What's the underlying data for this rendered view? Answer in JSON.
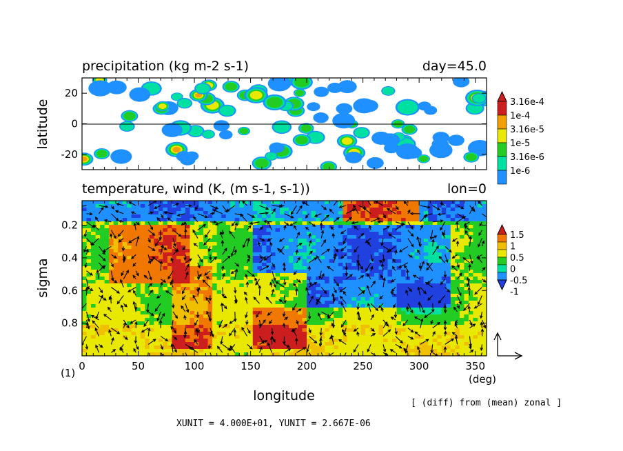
{
  "chart_data": [
    {
      "type": "heatmap",
      "title": "precipitation (kg m-2 s-1)",
      "annotation_right": "day=45.0",
      "ylabel": "latitude",
      "xlim": [
        0,
        360
      ],
      "ylim": [
        -30,
        30
      ],
      "yticks": [
        "20",
        "0",
        "-20"
      ],
      "ytick_values": [
        20,
        0,
        -20
      ],
      "colorbar": {
        "labels": [
          "3.16e-4",
          "1e-4",
          "3.16e-5",
          "1e-5",
          "3.16e-6",
          "1e-6"
        ],
        "colors": [
          "#cc1e1e",
          "#f0a000",
          "#e8e800",
          "#22cc22",
          "#00e0a0",
          "#1e90ff"
        ]
      }
    },
    {
      "type": "heatmap",
      "title": "temperature, wind (K, (m s-1, s-1))",
      "annotation_right": "lon=0",
      "ylabel": "sigma",
      "xlabel": "longitude",
      "xunit_label": "(deg)",
      "xlim": [
        0,
        360
      ],
      "ylim": [
        1.0,
        0.05
      ],
      "xticks": [
        "0",
        "50",
        "100",
        "150",
        "200",
        "250",
        "300",
        "350"
      ],
      "xtick_values": [
        0,
        50,
        100,
        150,
        200,
        250,
        300,
        350
      ],
      "yticks": [
        "0.2",
        "0.4",
        "0.6",
        "0.8"
      ],
      "ytick_values": [
        0.2,
        0.4,
        0.6,
        0.8
      ],
      "colorbar": {
        "labels": [
          "1.5",
          "1",
          "0.5",
          "0",
          "-0.5",
          "-1"
        ],
        "colors": [
          "#cc1e1e",
          "#f07800",
          "#f0c000",
          "#e8e800",
          "#22cc22",
          "#00e0a0",
          "#1e90ff",
          "#2040e0"
        ]
      }
    }
  ],
  "footer": {
    "panel_index": "(1)",
    "note": "[ (diff) from (mean) zonal ]",
    "units": "XUNIT = 4.000E+01, YUNIT = 2.667E-06"
  }
}
